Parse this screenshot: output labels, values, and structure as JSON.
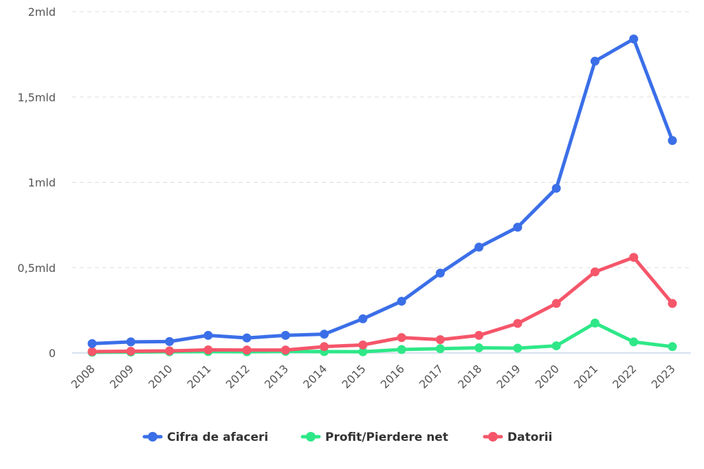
{
  "chart_data": {
    "type": "line",
    "title": "",
    "xlabel": "",
    "ylabel": "",
    "categories": [
      "2008",
      "2009",
      "2010",
      "2011",
      "2012",
      "2013",
      "2014",
      "2015",
      "2016",
      "2017",
      "2018",
      "2019",
      "2020",
      "2021",
      "2022",
      "2023"
    ],
    "ylim": [
      0,
      2000000000
    ],
    "yticks": [
      0,
      500000000,
      1000000000,
      1500000000,
      2000000000
    ],
    "ytick_labels": [
      "0",
      "0,5mld",
      "1mld",
      "1,5mld",
      "2mld"
    ],
    "grid": true,
    "legend_position": "bottom-center",
    "series": [
      {
        "name": "Cifra de afaceri",
        "color": "#3b6fe8",
        "values": [
          55000000,
          65000000,
          67000000,
          103000000,
          88000000,
          103000000,
          110000000,
          200000000,
          303000000,
          468000000,
          620000000,
          737000000,
          965000000,
          1710000000,
          1840000000,
          1245000000
        ]
      },
      {
        "name": "Profit/Pierdere net",
        "color": "#2ee888",
        "values": [
          4000000,
          5000000,
          7000000,
          8000000,
          7000000,
          9000000,
          8000000,
          7000000,
          20000000,
          25000000,
          30000000,
          28000000,
          42000000,
          175000000,
          65000000,
          37000000
        ]
      },
      {
        "name": "Datorii",
        "color": "#f5566a",
        "values": [
          8000000,
          10000000,
          12000000,
          18000000,
          17000000,
          17000000,
          37000000,
          47000000,
          90000000,
          78000000,
          103000000,
          173000000,
          290000000,
          475000000,
          560000000,
          290000000
        ]
      }
    ]
  }
}
